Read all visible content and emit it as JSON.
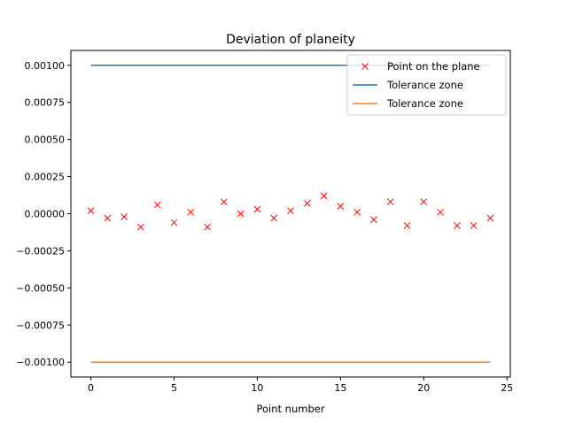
{
  "chart_data": {
    "type": "line",
    "title": "Deviation of planeity",
    "xlabel": "Point number",
    "ylabel": "",
    "xlim": [
      -1.2,
      25.2
    ],
    "ylim": [
      -0.0011,
      0.0011
    ],
    "x_ticks": [
      0,
      5,
      10,
      15,
      20,
      25
    ],
    "x_tick_labels": [
      "0",
      "5",
      "10",
      "15",
      "20",
      "25"
    ],
    "y_ticks": [
      0.001,
      0.00075,
      0.0005,
      0.00025,
      0.0,
      -0.00025,
      -0.0005,
      -0.00075,
      -0.001
    ],
    "y_tick_labels": [
      "0.00100",
      "0.00075",
      "0.00050",
      "0.00025",
      "0.00000",
      "−0.00025",
      "−0.00050",
      "−0.00075",
      "−0.00100"
    ],
    "grid": false,
    "legend_position": "top-right",
    "series": [
      {
        "name": "Point on the plane",
        "type": "scatter",
        "marker": "x",
        "color": "#ff0000",
        "x": [
          0,
          1,
          2,
          3,
          4,
          5,
          6,
          7,
          8,
          9,
          10,
          11,
          12,
          13,
          14,
          15,
          16,
          17,
          18,
          19,
          20,
          21,
          22,
          23,
          24
        ],
        "y": [
          2e-05,
          -3e-05,
          -2e-05,
          -9e-05,
          6e-05,
          -6e-05,
          1e-05,
          -9e-05,
          8e-05,
          0.0,
          3e-05,
          -3e-05,
          2e-05,
          7e-05,
          0.00012,
          5e-05,
          1e-05,
          -4e-05,
          8e-05,
          -8e-05,
          8e-05,
          1e-05,
          -8e-05,
          -8e-05,
          -3e-05
        ]
      },
      {
        "name": "Tolerance zone",
        "type": "line",
        "color": "#1f77b4",
        "x": [
          0,
          24
        ],
        "y": [
          0.001,
          0.001
        ]
      },
      {
        "name": "Tolerance zone",
        "type": "line",
        "color": "#ff7f0e",
        "x": [
          0,
          24
        ],
        "y": [
          -0.001,
          -0.001
        ]
      }
    ]
  }
}
